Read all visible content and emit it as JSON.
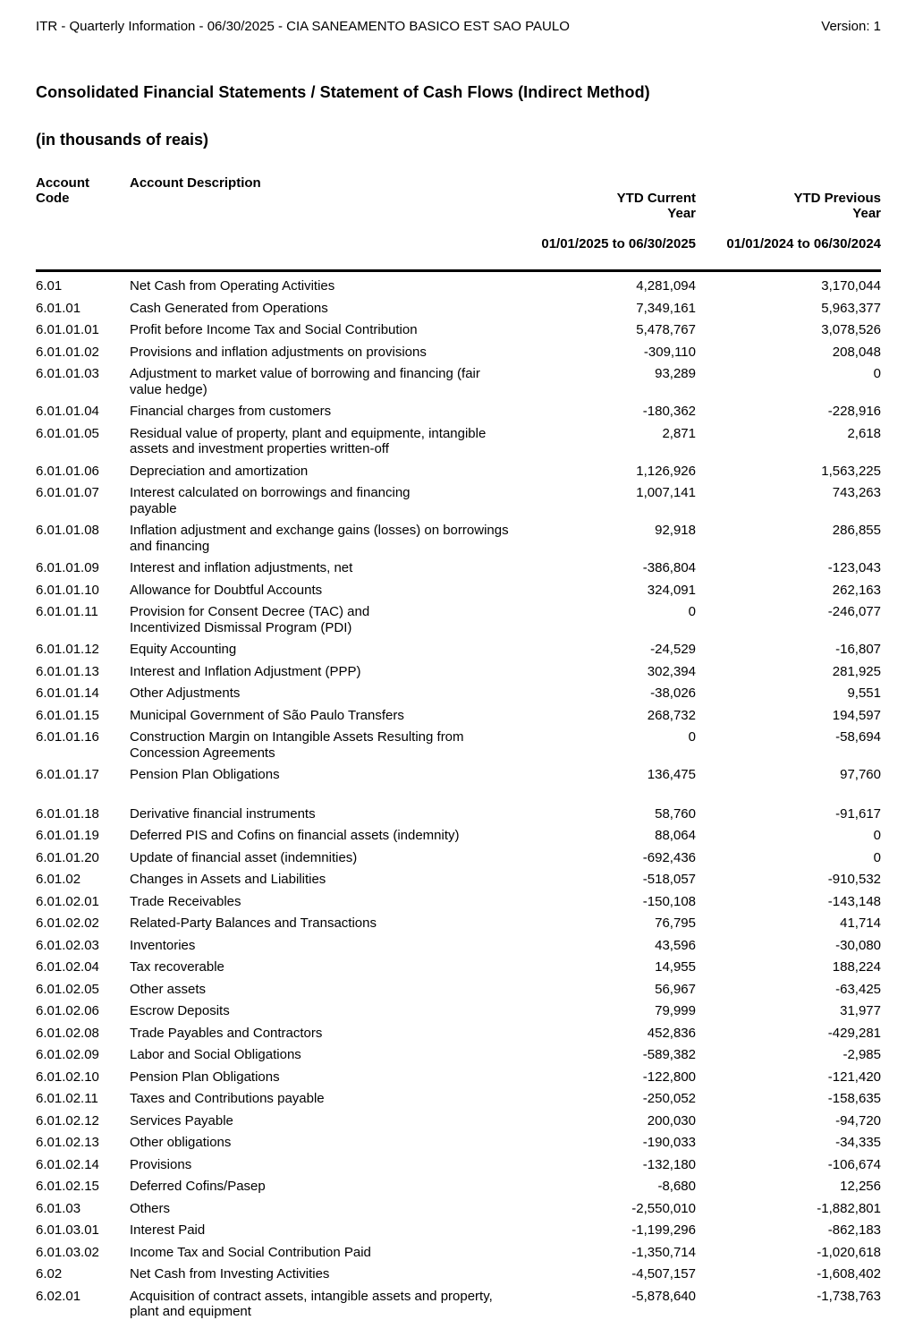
{
  "doc_header": {
    "left": "ITR - Quarterly Information - 06/30/2025 - CIA SANEAMENTO BASICO EST SAO PAULO",
    "version": "Version: 1"
  },
  "title": "Consolidated Financial Statements / Statement of Cash Flows (Indirect Method)",
  "subtitle": "(in thousands of reais)",
  "table": {
    "columns": {
      "code_label": "Account\nCode",
      "desc_label": "Account Description",
      "current_label": "YTD Current\nYear",
      "current_period": "01/01/2025 to 06/30/2025",
      "previous_label": "YTD Previous\nYear",
      "previous_period": "01/01/2024 to 06/30/2024"
    },
    "rows": [
      {
        "code": "6.01",
        "desc": "Net Cash from Operating Activities",
        "current": "4,281,094",
        "previous": "3,170,044"
      },
      {
        "code": "6.01.01",
        "desc": "Cash Generated from Operations",
        "current": "7,349,161",
        "previous": "5,963,377"
      },
      {
        "code": "6.01.01.01",
        "desc": "Profit before Income Tax and Social Contribution",
        "current": "5,478,767",
        "previous": "3,078,526"
      },
      {
        "code": "6.01.01.02",
        "desc": "Provisions and inflation adjustments on provisions",
        "current": "-309,110",
        "previous": "208,048"
      },
      {
        "code": "6.01.01.03",
        "desc": "Adjustment to market value of borrowing and financing (fair\nvalue hedge)",
        "current": "93,289",
        "previous": "0"
      },
      {
        "code": "6.01.01.04",
        "desc": "Financial charges from customers",
        "current": "-180,362",
        "previous": "-228,916"
      },
      {
        "code": "6.01.01.05",
        "desc": "Residual value of property, plant and equipmente, intangible\nassets and investment properties written-off",
        "current": "2,871",
        "previous": "2,618"
      },
      {
        "code": "6.01.01.06",
        "desc": "Depreciation and amortization",
        "current": "1,126,926",
        "previous": "1,563,225"
      },
      {
        "code": "6.01.01.07",
        "desc": "Interest calculated on borrowings and financing\npayable",
        "current": "1,007,141",
        "previous": "743,263"
      },
      {
        "code": "6.01.01.08",
        "desc": "Inflation adjustment and exchange gains (losses) on borrowings\nand financing",
        "current": "92,918",
        "previous": "286,855"
      },
      {
        "code": "6.01.01.09",
        "desc": "Interest and inflation adjustments, net",
        "current": "-386,804",
        "previous": "-123,043"
      },
      {
        "code": "6.01.01.10",
        "desc": "Allowance for Doubtful Accounts",
        "current": "324,091",
        "previous": "262,163"
      },
      {
        "code": "6.01.01.11",
        "desc": "Provision for Consent Decree (TAC) and\nIncentivized Dismissal Program (PDI)",
        "current": "0",
        "previous": "-246,077"
      },
      {
        "code": "6.01.01.12",
        "desc": "Equity Accounting",
        "current": "-24,529",
        "previous": "-16,807"
      },
      {
        "code": "6.01.01.13",
        "desc": "Interest and Inflation Adjustment (PPP)",
        "current": "302,394",
        "previous": "281,925"
      },
      {
        "code": "6.01.01.14",
        "desc": "Other Adjustments",
        "current": "-38,026",
        "previous": "9,551"
      },
      {
        "code": "6.01.01.15",
        "desc": "Municipal Government of São Paulo Transfers",
        "current": "268,732",
        "previous": "194,597"
      },
      {
        "code": "6.01.01.16",
        "desc": "Construction Margin on Intangible Assets Resulting from\nConcession Agreements",
        "current": "0",
        "previous": "-58,694"
      },
      {
        "code": "6.01.01.17",
        "desc": "Pension Plan Obligations",
        "current": "136,475",
        "previous": "97,760"
      },
      {
        "code": "6.01.01.18",
        "desc": "Derivative financial instruments",
        "current": "58,760",
        "previous": "-91,617",
        "gap_before": true
      },
      {
        "code": "6.01.01.19",
        "desc": "Deferred PIS and Cofins on financial assets (indemnity)",
        "current": "88,064",
        "previous": "0"
      },
      {
        "code": "6.01.01.20",
        "desc": "Update of financial asset (indemnities)",
        "current": "-692,436",
        "previous": "0"
      },
      {
        "code": "6.01.02",
        "desc": "Changes in Assets and Liabilities",
        "current": "-518,057",
        "previous": "-910,532"
      },
      {
        "code": "6.01.02.01",
        "desc": "Trade Receivables",
        "current": "-150,108",
        "previous": "-143,148"
      },
      {
        "code": "6.01.02.02",
        "desc": "Related-Party Balances and Transactions",
        "current": "76,795",
        "previous": "41,714"
      },
      {
        "code": "6.01.02.03",
        "desc": "Inventories",
        "current": "43,596",
        "previous": "-30,080"
      },
      {
        "code": "6.01.02.04",
        "desc": "Tax recoverable",
        "current": "14,955",
        "previous": "188,224"
      },
      {
        "code": "6.01.02.05",
        "desc": "Other assets",
        "current": "56,967",
        "previous": "-63,425"
      },
      {
        "code": "6.01.02.06",
        "desc": "Escrow Deposits",
        "current": "79,999",
        "previous": "31,977"
      },
      {
        "code": "6.01.02.08",
        "desc": "Trade Payables and Contractors",
        "current": "452,836",
        "previous": "-429,281"
      },
      {
        "code": "6.01.02.09",
        "desc": "Labor and Social Obligations",
        "current": "-589,382",
        "previous": "-2,985"
      },
      {
        "code": "6.01.02.10",
        "desc": "Pension Plan Obligations",
        "current": "-122,800",
        "previous": "-121,420"
      },
      {
        "code": "6.01.02.11",
        "desc": "Taxes and Contributions payable",
        "current": "-250,052",
        "previous": "-158,635"
      },
      {
        "code": "6.01.02.12",
        "desc": "Services Payable",
        "current": "200,030",
        "previous": "-94,720"
      },
      {
        "code": "6.01.02.13",
        "desc": "Other obligations",
        "current": "-190,033",
        "previous": "-34,335"
      },
      {
        "code": "6.01.02.14",
        "desc": "Provisions",
        "current": "-132,180",
        "previous": "-106,674"
      },
      {
        "code": "6.01.02.15",
        "desc": "Deferred Cofins/Pasep",
        "current": "-8,680",
        "previous": "12,256"
      },
      {
        "code": "6.01.03",
        "desc": "Others",
        "current": "-2,550,010",
        "previous": "-1,882,801"
      },
      {
        "code": "6.01.03.01",
        "desc": "Interest Paid",
        "current": "-1,199,296",
        "previous": "-862,183"
      },
      {
        "code": "6.01.03.02",
        "desc": "Income Tax and Social Contribution Paid",
        "current": "-1,350,714",
        "previous": "-1,020,618"
      },
      {
        "code": "6.02",
        "desc": "Net Cash from Investing Activities",
        "current": "-4,507,157",
        "previous": "-1,608,402"
      },
      {
        "code": "6.02.01",
        "desc": "Acquisition of contract assets, intangible assets and property,\nplant and equipment",
        "current": "-5,878,640",
        "previous": "-1,738,763"
      }
    ]
  }
}
